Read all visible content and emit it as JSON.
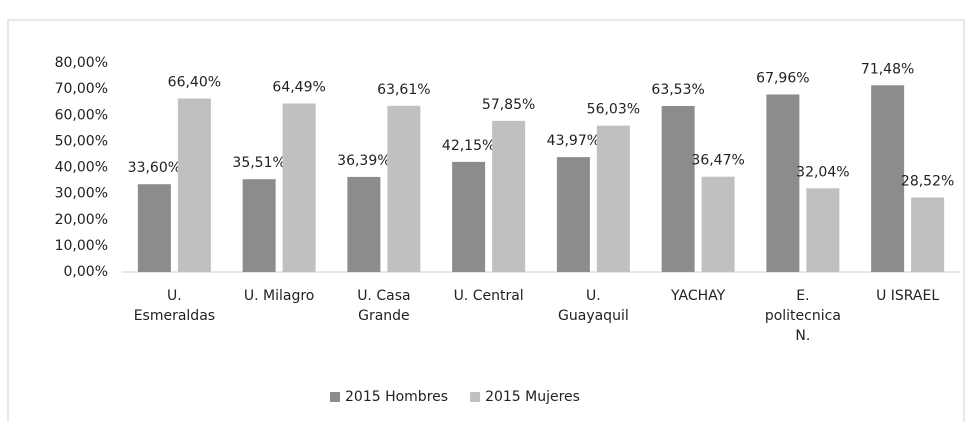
{
  "chart_data": {
    "type": "bar",
    "categories": [
      "U. Esmeraldas",
      "U. Milagro",
      "U. Casa Grande",
      "U. Central",
      "U. Guayaquil",
      "YACHAY",
      "E. politecnica N.",
      "U ISRAEL"
    ],
    "series": [
      {
        "name": "2015 Hombres",
        "color": "#8c8c8c",
        "values": [
          33.6,
          35.51,
          36.39,
          42.15,
          43.97,
          63.53,
          67.96,
          71.48
        ],
        "value_labels": [
          "33,60%",
          "35,51%",
          "36,39%",
          "42,15%",
          "43,97%",
          "63,53%",
          "67,96%",
          "71,48%"
        ]
      },
      {
        "name": "2015 Mujeres",
        "color": "#c0c0c0",
        "values": [
          66.4,
          64.49,
          63.61,
          57.85,
          56.03,
          36.47,
          32.04,
          28.52
        ],
        "value_labels": [
          "66,40%",
          "64,49%",
          "63,61%",
          "57,85%",
          "56,03%",
          "36,47%",
          "32,04%",
          "28,52%"
        ]
      }
    ],
    "ylim": [
      0,
      80
    ],
    "yticks": [
      {
        "value": 0,
        "label": "0,00%"
      },
      {
        "value": 10,
        "label": "10,00%"
      },
      {
        "value": 20,
        "label": "20,00%"
      },
      {
        "value": 30,
        "label": "30,00%"
      },
      {
        "value": 40,
        "label": "40,00%"
      },
      {
        "value": 50,
        "label": "50,00%"
      },
      {
        "value": 60,
        "label": "60,00%"
      },
      {
        "value": 70,
        "label": "70,00%"
      },
      {
        "value": 80,
        "label": "80,00%"
      }
    ],
    "grid": false,
    "legend": "bottom"
  }
}
